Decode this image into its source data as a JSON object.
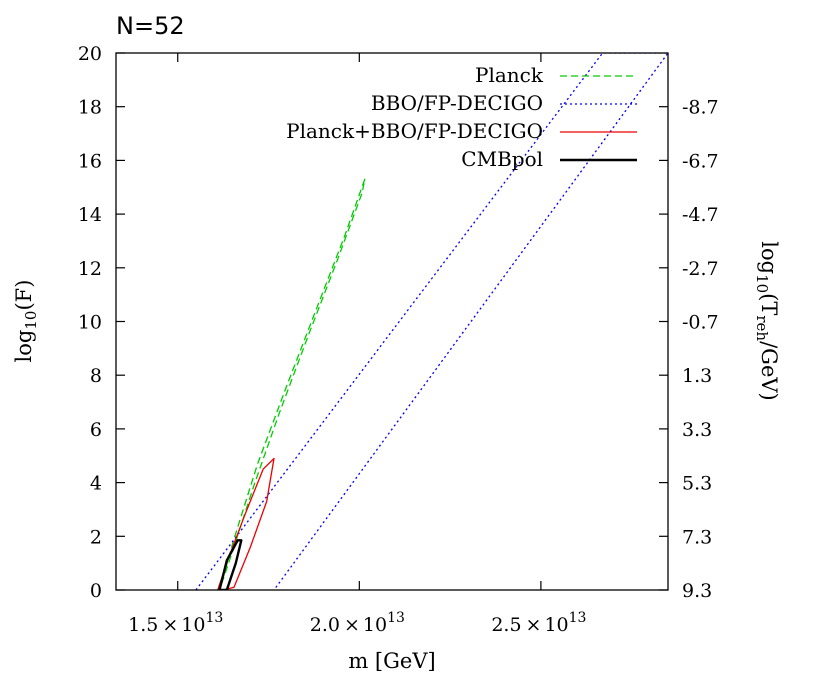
{
  "chart_data": {
    "type": "line",
    "title": "N=52",
    "xlabel": "m [GeV]",
    "ylabel": "log",
    "ylabel_sub": "10",
    "ylabel_tail": "(F)",
    "y2label": "log",
    "y2label_sub": "10",
    "y2label_mid": "(T",
    "y2label_sub2": "reh",
    "y2label_tail": "/GeV)",
    "xlim": [
      13300000000000.0,
      28500000000000.0
    ],
    "ylim": [
      0,
      20
    ],
    "x_ticks": [
      {
        "value": 15000000000000.0,
        "mant": "1.5",
        "times": "×",
        "base": "10",
        "exp": "13"
      },
      {
        "value": 20000000000000.0,
        "mant": "2.0",
        "times": "×",
        "base": "10",
        "exp": "13"
      },
      {
        "value": 25000000000000.0,
        "mant": "2.5",
        "times": "×",
        "base": "10",
        "exp": "13"
      }
    ],
    "y_ticks": [
      {
        "value": 0,
        "label": "0"
      },
      {
        "value": 2,
        "label": "2"
      },
      {
        "value": 4,
        "label": "4"
      },
      {
        "value": 6,
        "label": "6"
      },
      {
        "value": 8,
        "label": "8"
      },
      {
        "value": 10,
        "label": "10"
      },
      {
        "value": 12,
        "label": "12"
      },
      {
        "value": 14,
        "label": "14"
      },
      {
        "value": 16,
        "label": "16"
      },
      {
        "value": 18,
        "label": "18"
      },
      {
        "value": 20,
        "label": "20"
      }
    ],
    "y2_ticks": [
      {
        "value": 0,
        "label": "9.3"
      },
      {
        "value": 2,
        "label": "7.3"
      },
      {
        "value": 4,
        "label": "5.3"
      },
      {
        "value": 6,
        "label": "3.3"
      },
      {
        "value": 8,
        "label": "1.3"
      },
      {
        "value": 10,
        "label": "-0.7"
      },
      {
        "value": 12,
        "label": "-2.7"
      },
      {
        "value": 14,
        "label": "-4.7"
      },
      {
        "value": 16,
        "label": "-6.7"
      },
      {
        "value": 18,
        "label": "-8.7"
      }
    ],
    "legend_position": "top-right",
    "series": [
      {
        "name": "Planck",
        "color": "#00cc00",
        "dash": "dashed",
        "x": [
          16150000000000.0,
          16550000000000.0,
          17200000000000.0,
          18000000000000.0,
          18800000000000.0,
          19600000000000.0,
          20150000000000.0,
          20080000000000.0,
          19400000000000.0,
          18600000000000.0,
          17800000000000.0,
          17100000000000.0,
          16500000000000.0,
          16150000000000.0
        ],
        "y": [
          0,
          1.9,
          4.7,
          7.6,
          10.4,
          13.2,
          15.3,
          14.8,
          12.3,
          9.5,
          6.6,
          3.9,
          1.4,
          0
        ]
      },
      {
        "name": "BBO/FP-DECIGO",
        "color": "#0000ff",
        "dash": "dotted",
        "x": [
          15500000000000.0,
          26700000000000.0,
          28500000000000.0,
          17650000000000.0
        ],
        "y": [
          0,
          20,
          20,
          0
        ]
      },
      {
        "name": "Planck+BBO/FP-DECIGO",
        "color": "#ee0000",
        "dash": "solid",
        "x": [
          16100000000000.0,
          16400000000000.0,
          16850000000000.0,
          17350000000000.0,
          17650000000000.0,
          17450000000000.0,
          17000000000000.0,
          16550000000000.0,
          16250000000000.0,
          16100000000000.0
        ],
        "y": [
          0,
          1.2,
          2.8,
          4.5,
          4.9,
          3.3,
          1.6,
          0.1,
          0,
          0
        ]
      },
      {
        "name": "CMBpol",
        "color": "#000000",
        "dash": "solid",
        "x": [
          16150000000000.0,
          16350000000000.0,
          16650000000000.0,
          16750000000000.0,
          16600000000000.0,
          16350000000000.0,
          16150000000000.0
        ],
        "y": [
          0,
          1.1,
          1.85,
          1.85,
          1.0,
          0,
          0
        ]
      }
    ]
  }
}
